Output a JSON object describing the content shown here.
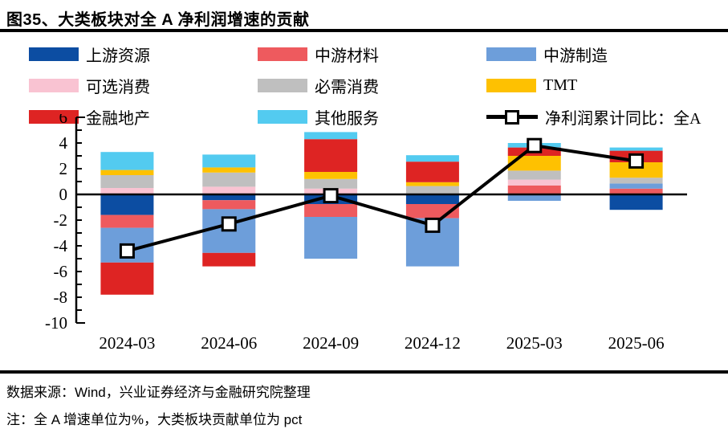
{
  "figure": {
    "title": "图35、大类板块对全 A 净利润增速的贡献"
  },
  "legend": {
    "items": [
      {
        "label": "上游资源",
        "color": "#0c4da2",
        "type": "box"
      },
      {
        "label": "中游材料",
        "color": "#ee5a5e",
        "type": "box"
      },
      {
        "label": "中游制造",
        "color": "#6d9eda",
        "type": "box"
      },
      {
        "label": "可选消费",
        "color": "#f9c3d2",
        "type": "box"
      },
      {
        "label": "必需消费",
        "color": "#bfbfbf",
        "type": "box"
      },
      {
        "label": "TMT",
        "color": "#fec101",
        "type": "box"
      },
      {
        "label": "金融地产",
        "color": "#de2423",
        "type": "box"
      },
      {
        "label": "其他服务",
        "color": "#53cbf0",
        "type": "box"
      },
      {
        "label": "净利润累计同比：全A",
        "color": "#000000",
        "type": "line"
      }
    ]
  },
  "chart_data": {
    "type": "bar",
    "subtype": "stacked-bar-with-line",
    "title": "大类板块对全A净利润增速的贡献",
    "categories": [
      "2024-03",
      "2024-06",
      "2024-09",
      "2024-12",
      "2025-03",
      "2025-06"
    ],
    "series": [
      {
        "name": "上游资源",
        "color": "#0c4da2",
        "values": [
          -1.6,
          -0.45,
          -0.75,
          -0.75,
          0,
          -1.2
        ]
      },
      {
        "name": "中游材料",
        "color": "#ee5a5e",
        "values": [
          -1.0,
          -0.7,
          -1.0,
          -1.1,
          0.7,
          0.45
        ]
      },
      {
        "name": "中游制造",
        "color": "#6d9eda",
        "values": [
          -2.7,
          -3.4,
          -3.25,
          -3.75,
          -0.5,
          0.4
        ]
      },
      {
        "name": "可选消费",
        "color": "#f9c3d2",
        "values": [
          0.5,
          0.6,
          0.45,
          0,
          0.45,
          0
        ]
      },
      {
        "name": "必需消费",
        "color": "#bfbfbf",
        "values": [
          1.0,
          1.1,
          0.75,
          0.65,
          0.7,
          0.45
        ]
      },
      {
        "name": "TMT",
        "color": "#fec101",
        "values": [
          0.4,
          0.4,
          0.55,
          0.3,
          1.15,
          1.2
        ]
      },
      {
        "name": "金融地产",
        "color": "#de2423",
        "values": [
          -2.5,
          -1.05,
          2.55,
          1.6,
          0.65,
          0.9
        ]
      },
      {
        "name": "其他服务",
        "color": "#53cbf0",
        "values": [
          1.4,
          1.0,
          0.55,
          0.5,
          0.35,
          0.25
        ]
      }
    ],
    "line_series": {
      "name": "净利润累计同比：全A",
      "color": "#000000",
      "marker": "white-square",
      "values": [
        -4.4,
        -2.3,
        -0.1,
        -2.4,
        3.8,
        2.6
      ]
    },
    "ylim": [
      -10,
      6
    ],
    "yticks": [
      6,
      4,
      2,
      0,
      -2,
      -4,
      -6,
      -8,
      -10
    ],
    "grid": false,
    "legend_position": "top",
    "units": {
      "bars": "pct",
      "line": "%"
    }
  },
  "footer": {
    "source": "数据来源：Wind，兴业证券经济与金融研究院整理",
    "note": "注：全 A 增速单位为%，大类板块贡献单位为 pct"
  }
}
